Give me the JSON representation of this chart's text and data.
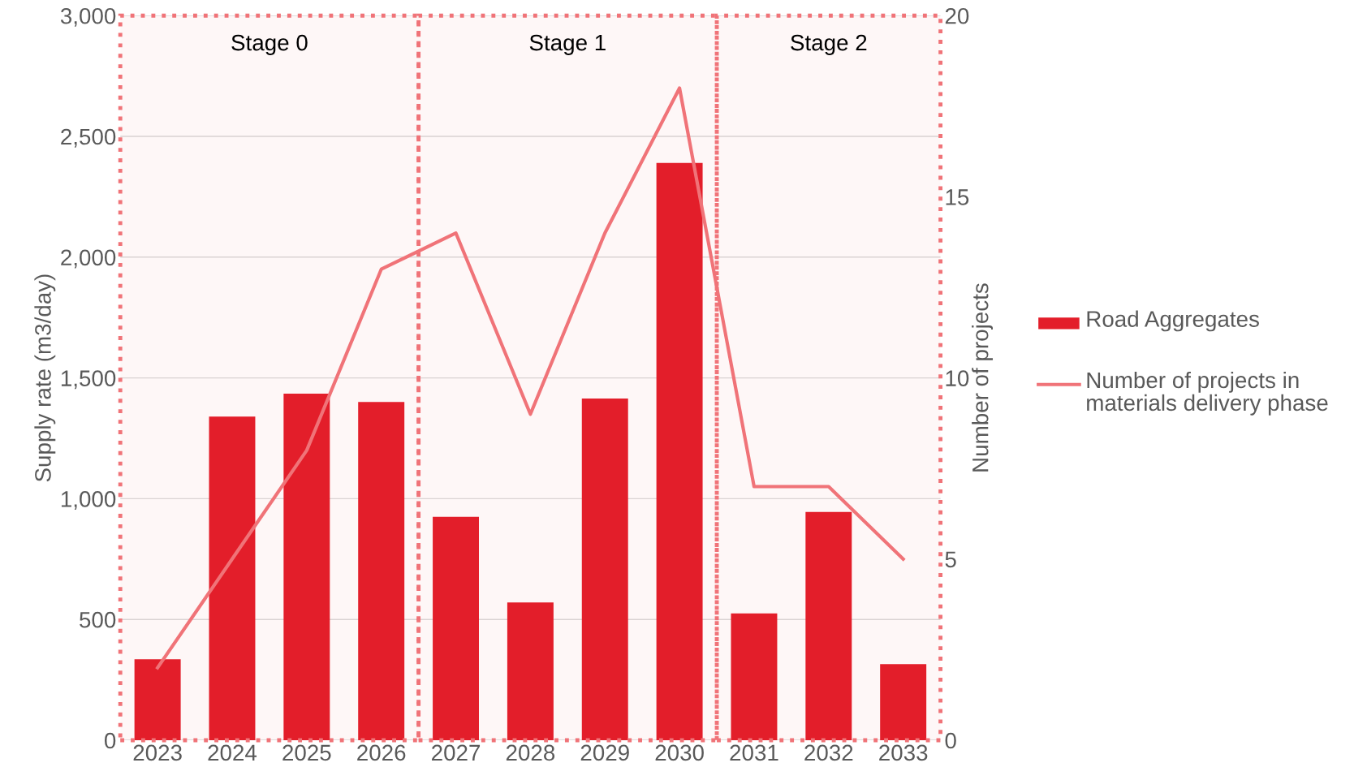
{
  "chart_data": {
    "type": "bar",
    "ylabel": "Supply rate (m3/day)",
    "y2label": "Number of projects",
    "categories": [
      "2023",
      "2024",
      "2025",
      "2026",
      "2027",
      "2028",
      "2029",
      "2030",
      "2031",
      "2032",
      "2033"
    ],
    "series": [
      {
        "name": "Road Aggregates",
        "color": "#e31e2a",
        "values": [
          335,
          1340,
          1435,
          1400,
          925,
          570,
          1415,
          2390,
          525,
          945,
          315
        ]
      },
      {
        "name": "Number of projects in materials delivery phase",
        "type": "line",
        "axis": "y2",
        "color": "#f07378",
        "values": [
          2,
          5,
          8,
          13,
          14,
          9,
          14,
          18,
          7,
          7,
          5
        ]
      }
    ],
    "ylim": [
      0,
      3000
    ],
    "yticks": [
      0,
      {
        "value": 500,
        "label": "500"
      },
      {
        "value": 1000,
        "label": "1,000"
      },
      {
        "value": 1500,
        "label": "1,500"
      },
      {
        "value": 2000,
        "label": "2,000"
      },
      {
        "value": 2500,
        "label": "2,500"
      },
      {
        "value": 3000,
        "label": "3,000"
      }
    ],
    "y2lim": [
      0,
      20
    ],
    "y2ticks": [
      0,
      5,
      10,
      15,
      20
    ],
    "bands": [
      {
        "axis": "x",
        "from": "2023",
        "to": "2026",
        "label": "Stage 0",
        "color": "#f07378"
      },
      {
        "axis": "x",
        "from": "2027",
        "to": "2030",
        "label": "Stage 1",
        "color": "#f07378"
      },
      {
        "axis": "x",
        "from": "2031",
        "to": "2033",
        "label": "Stage 2",
        "color": "#f07378"
      }
    ],
    "grid": "y",
    "legend": "right",
    "marker": "none",
    "line_style": "solid"
  }
}
